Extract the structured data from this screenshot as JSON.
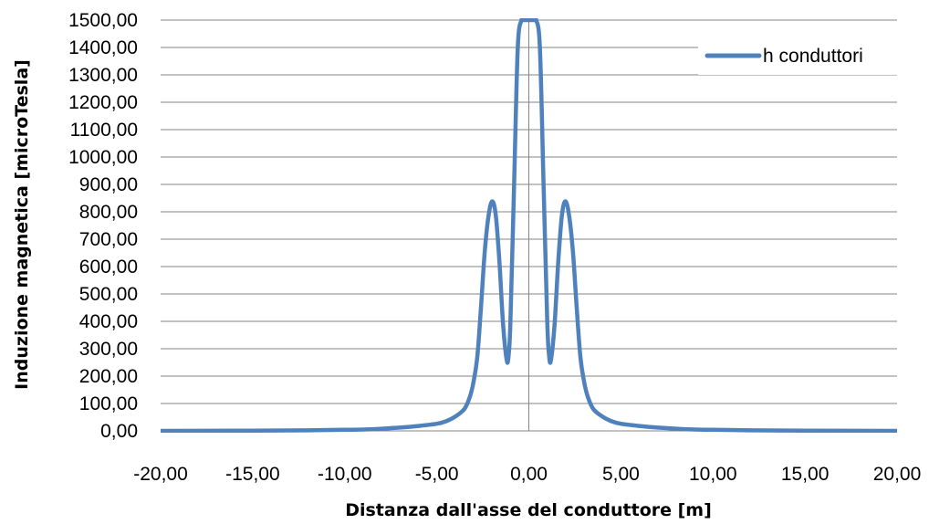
{
  "chart_data": {
    "type": "line",
    "title": "",
    "xlabel": "Distanza dall'asse del conduttore [m]",
    "ylabel": "Induzione magnetica [microTesla]",
    "xlim": [
      -20,
      20
    ],
    "ylim": [
      0,
      1500
    ],
    "x_ticks": [
      -20,
      -15,
      -10,
      -5,
      0,
      5,
      10,
      15,
      20
    ],
    "x_tick_labels": [
      "-20,00",
      "-15,00",
      "-10,00",
      "-5,00",
      "0,00",
      "5,00",
      "10,00",
      "15,00",
      "20,00"
    ],
    "y_ticks": [
      0,
      100,
      200,
      300,
      400,
      500,
      600,
      700,
      800,
      900,
      1000,
      1100,
      1200,
      1300,
      1400,
      1500
    ],
    "y_tick_labels": [
      "0,00",
      "100,00",
      "200,00",
      "300,00",
      "400,00",
      "500,00",
      "600,00",
      "700,00",
      "800,00",
      "900,00",
      "1000,00",
      "1100,00",
      "1200,00",
      "1300,00",
      "1400,00",
      "1500,00"
    ],
    "grid": "horizontal",
    "legend_position": "top-right",
    "series": [
      {
        "name": "h conduttori",
        "color": "#4f81bd",
        "x": [
          -20,
          -15,
          -12,
          -10,
          -9,
          -8,
          -7,
          -6,
          -5,
          -4.5,
          -4,
          -3.5,
          -3.2,
          -3,
          -2.8,
          -2.6,
          -2.4,
          -2.2,
          -2,
          -1.8,
          -1.6,
          -1.4,
          -1.2,
          -1.1,
          -1.0,
          -0.8,
          -0.6,
          -0.4,
          -0.3,
          -0.2,
          0,
          0.2,
          0.3,
          0.4,
          0.6,
          0.8,
          1.0,
          1.1,
          1.2,
          1.4,
          1.6,
          1.8,
          2,
          2.2,
          2.4,
          2.6,
          2.8,
          3,
          3.2,
          3.5,
          4,
          4.5,
          5,
          6,
          7,
          8,
          9,
          10,
          12,
          15,
          20
        ],
        "y": [
          0,
          1,
          2,
          4,
          5,
          8,
          12,
          18,
          26,
          35,
          52,
          80,
          125,
          180,
          270,
          450,
          650,
          780,
          838,
          790,
          620,
          390,
          258,
          275,
          400,
          900,
          1400,
          1500,
          1500,
          1500,
          1500,
          1500,
          1500,
          1500,
          1400,
          900,
          400,
          275,
          258,
          390,
          620,
          790,
          838,
          780,
          650,
          450,
          270,
          180,
          125,
          80,
          52,
          35,
          26,
          18,
          12,
          8,
          5,
          4,
          2,
          1,
          0
        ]
      }
    ]
  }
}
